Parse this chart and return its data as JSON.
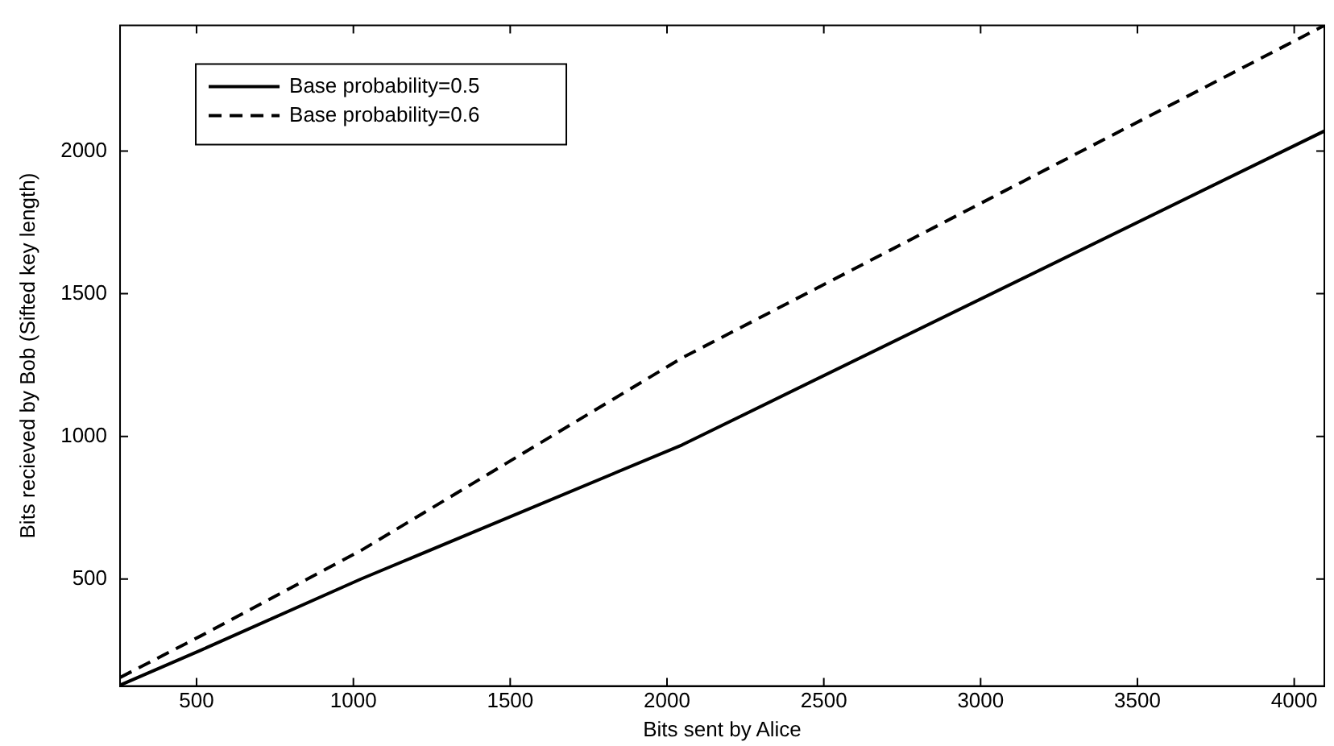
{
  "chart_data": {
    "type": "line",
    "xlabel": "Bits sent by Alice",
    "ylabel": "Bits recieved by Bob (Sifted key length)",
    "x": [
      256,
      512,
      1024,
      2048,
      4096
    ],
    "series": [
      {
        "name": "Base probability=0.5",
        "color": "#000000",
        "line_style": "solid",
        "values": [
          128,
          250,
          500,
          970,
          2070
        ]
      },
      {
        "name": "Base probability=0.6",
        "color": "#000000",
        "line_style": "dashed",
        "values": [
          155,
          300,
          600,
          1275,
          2440
        ]
      }
    ],
    "xlim": [
      256,
      4096
    ],
    "xticks": [
      500,
      1000,
      1500,
      2000,
      2500,
      3000,
      3500,
      4000
    ],
    "ylim": [
      125,
      2440
    ],
    "yticks": [
      500,
      1000,
      1500,
      2000
    ],
    "grid": false,
    "legend": "top left",
    "marker": "none"
  }
}
